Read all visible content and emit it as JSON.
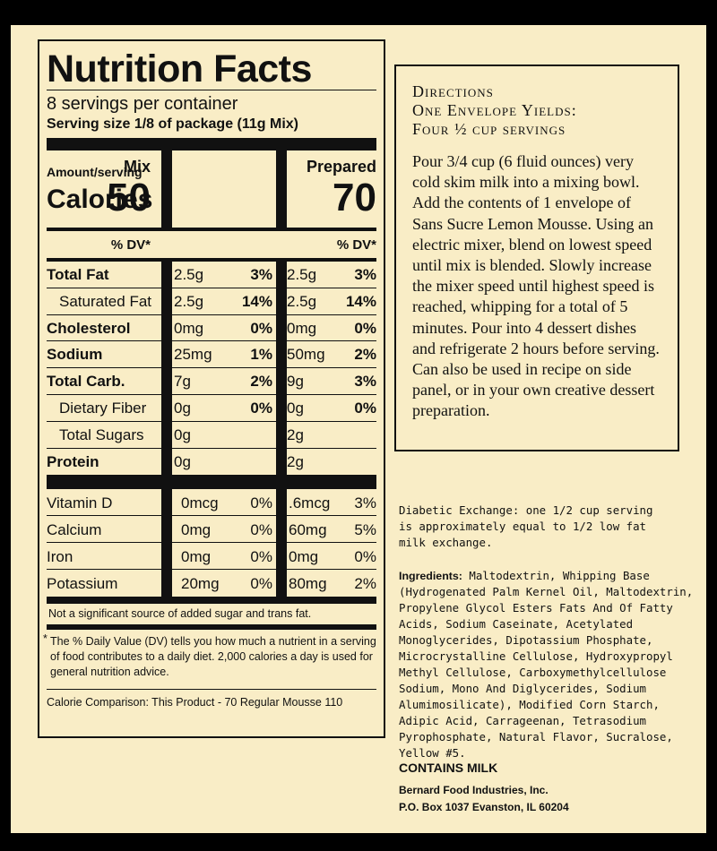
{
  "nutrition": {
    "title": "Nutrition Facts",
    "servings": "8 servings per container",
    "serving_size": "Serving size 1/8 of package (11g Mix)",
    "amount_label": "Amount/serving",
    "calories_label": "Calories",
    "mix_header": "Mix",
    "prepared_header": "Prepared",
    "mix_calories": "50",
    "prepared_calories": "70",
    "dv_label": "% DV*",
    "nutrients": [
      {
        "label": "Total Fat",
        "bold": true,
        "indent": false,
        "mix": "2.5g",
        "mix_dv": "3%",
        "prep": "2.5g",
        "prep_dv": "3%"
      },
      {
        "label": "Saturated Fat",
        "bold": false,
        "indent": true,
        "mix": "2.5g",
        "mix_dv": "14%",
        "prep": "2.5g",
        "prep_dv": "14%"
      },
      {
        "label": "Cholesterol",
        "bold": true,
        "indent": false,
        "mix": "0mg",
        "mix_dv": "0%",
        "prep": "0mg",
        "prep_dv": "0%"
      },
      {
        "label": "Sodium",
        "bold": true,
        "indent": false,
        "mix": "25mg",
        "mix_dv": "1%",
        "prep": "50mg",
        "prep_dv": "2%"
      },
      {
        "label": "Total Carb.",
        "bold": true,
        "indent": false,
        "mix": "7g",
        "mix_dv": "2%",
        "prep": "9g",
        "prep_dv": "3%"
      },
      {
        "label": "Dietary Fiber",
        "bold": false,
        "indent": true,
        "mix": "0g",
        "mix_dv": "0%",
        "prep": "0g",
        "prep_dv": "0%"
      },
      {
        "label": "Total Sugars",
        "bold": false,
        "indent": true,
        "mix": "0g",
        "mix_dv": "",
        "prep": "2g",
        "prep_dv": ""
      },
      {
        "label": "Protein",
        "bold": true,
        "indent": false,
        "mix": "0g",
        "mix_dv": "",
        "prep": "2g",
        "prep_dv": ""
      }
    ],
    "vitamins": [
      {
        "label": "Vitamin D",
        "mix": "0mcg",
        "mix_dv": "0%",
        "prep": ".6mcg",
        "prep_dv": "3%"
      },
      {
        "label": "Calcium",
        "mix": "0mg",
        "mix_dv": "0%",
        "prep": "60mg",
        "prep_dv": "5%"
      },
      {
        "label": "Iron",
        "mix": "0mg",
        "mix_dv": "0%",
        "prep": "0mg",
        "prep_dv": "0%"
      },
      {
        "label": "Potassium",
        "mix": "20mg",
        "mix_dv": "0%",
        "prep": "80mg",
        "prep_dv": "2%"
      }
    ],
    "not_significant": "Not a significant source of added sugar and trans fat.",
    "footnote": "The % Daily Value (DV) tells you how much a nutrient in a serving of food contributes to a daily diet. 2,000 calories a day is used for general nutrition advice.",
    "footnote_mark": "*",
    "calorie_comparison": "Calorie Comparison: This Product - 70 Regular Mousse 110"
  },
  "directions": {
    "heading_line1": "Directions",
    "heading_line2": "One Envelope Yields:",
    "heading_line3": "Four ½ cup servings",
    "body": "Pour 3/4 cup (6 fluid ounces) very cold skim milk into a mixing bowl. Add the contents of 1 envelope of Sans Sucre Lemon Mousse. Using an electric mixer, blend on lowest speed until mix is blended. Slowly increase the mixer speed until highest speed is reached, whipping for a total of 5 minutes. Pour into 4 dessert dishes and refrigerate 2 hours before serving. Can also be used in recipe on side panel, or in your own creative dessert preparation."
  },
  "diabetic_exchange": "Diabetic Exchange: one 1/2 cup serving is approximately equal to 1/2 low fat milk exchange.",
  "ingredients_label": "Ingredients:",
  "ingredients": "Maltodextrin, Whipping Base (Hydrogenated Palm Kernel Oil, Maltodextrin, Propylene Glycol Esters Fats And Of Fatty Acids, Sodium Caseinate, Acetylated Monoglycerides, Dipotassium Phosphate, Microcrystalline Cellulose, Hydroxypropyl Methyl Cellulose, Carboxymethylcellulose Sodium, Mono And Diglycerides, Sodium Alumimosilicate), Modified Corn Starch, Adipic Acid, Carrageenan, Tetrasodium Pyrophosphate, Natural Flavor, Sucralose, Yellow #5.",
  "contains": "CONTAINS MILK",
  "company": "Bernard Food Industries, Inc.",
  "address": "P.O. Box 1037 Evanston, IL 60204"
}
